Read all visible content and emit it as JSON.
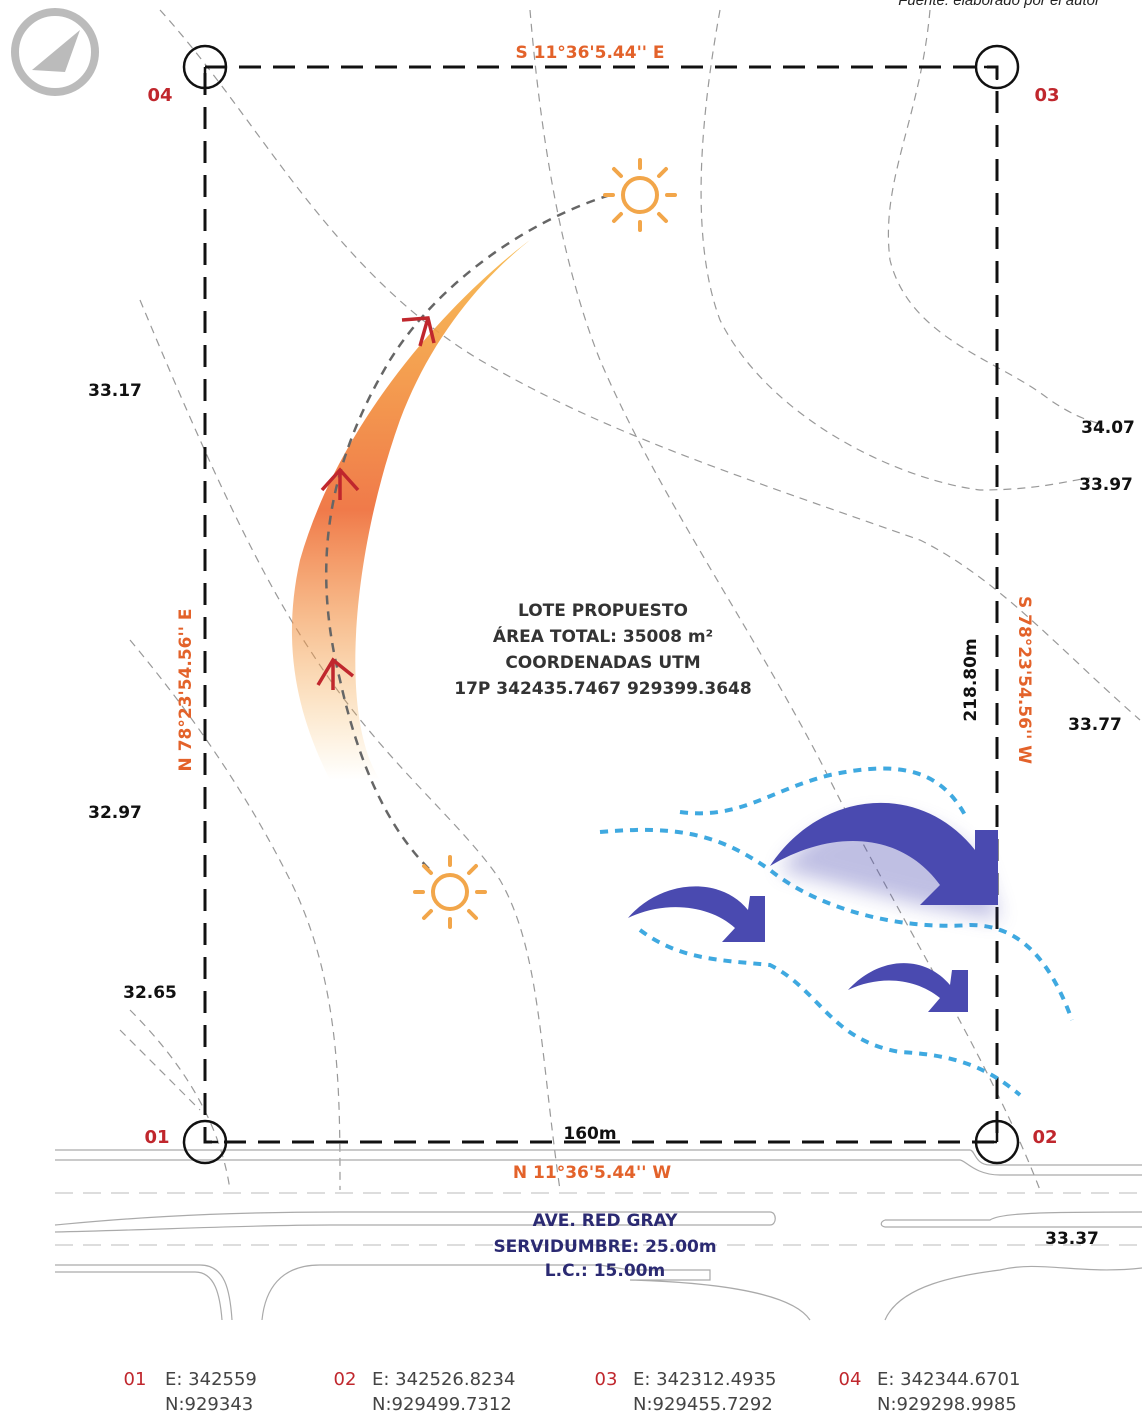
{
  "source": "Fuente: elaborado por el autor",
  "corners": [
    {
      "label": "04"
    },
    {
      "label": "03"
    },
    {
      "label": "01"
    },
    {
      "label": "02"
    }
  ],
  "bearings": {
    "top": "S 11°36'5.44'' E",
    "bottom": "N 11°36'5.44'' W",
    "left": "N 78°23'54.56'' E",
    "right": "S 78°23'54.56'' W"
  },
  "contours": [
    "33.17",
    "32.97",
    "32.65",
    "34.07",
    "33.97",
    "33.77",
    "33.37"
  ],
  "dimensions": {
    "side": "218.80m",
    "front": "160m"
  },
  "lot": {
    "title": "LOTE PROPUESTO",
    "area": "ÁREA TOTAL: 35008 m²",
    "coords_title": "COORDENADAS UTM",
    "coords": "17P 342435.7467 929399.3648"
  },
  "road": {
    "name": "AVE. RED GRAY",
    "easement": "SERVIDUMBRE: 25.00m",
    "lc": "L.C.: 15.00m"
  },
  "coordinates": [
    {
      "id": "01",
      "e": "E: 342559",
      "n": "N:929343"
    },
    {
      "id": "02",
      "e": "E: 342526.8234",
      "n": "N:929499.7312"
    },
    {
      "id": "03",
      "e": "E: 342312.4935",
      "n": "N:929455.7292"
    },
    {
      "id": "04",
      "e": "E: 342344.6701",
      "n": "N:929298.9985"
    }
  ]
}
